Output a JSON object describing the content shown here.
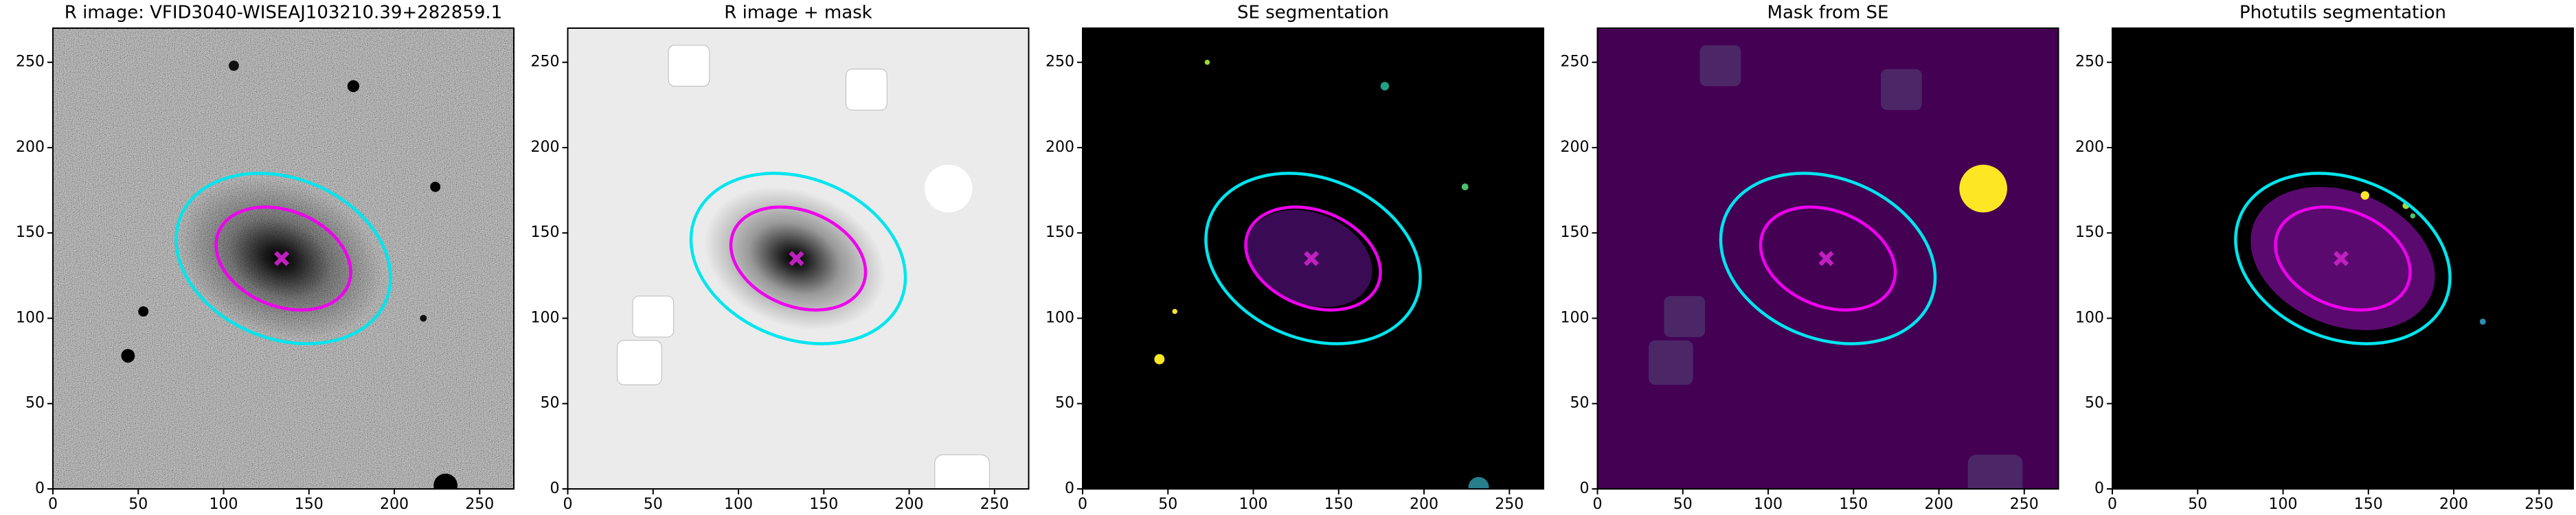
{
  "chart_data": [
    {
      "type": "image",
      "title": "R image: VFID3040-WISEAJ103210.39+282859.1",
      "xlim": [
        0,
        270
      ],
      "ylim": [
        0,
        270
      ],
      "xticks": [
        0,
        50,
        100,
        150,
        200,
        250
      ],
      "yticks": [
        0,
        50,
        100,
        150,
        200,
        250
      ],
      "background": "#5e5e5e",
      "noise": true,
      "sources": [
        {
          "shape": "glow",
          "x": 133,
          "y": 135,
          "size": 62,
          "color": "#000000"
        },
        {
          "shape": "circle",
          "x": 106,
          "y": 248,
          "size": 3,
          "color": "#111111"
        },
        {
          "shape": "circle",
          "x": 176,
          "y": 236,
          "size": 3.5,
          "color": "#000000"
        },
        {
          "shape": "circle",
          "x": 224,
          "y": 177,
          "size": 3,
          "color": "#000000"
        },
        {
          "shape": "circle",
          "x": 53,
          "y": 104,
          "size": 3,
          "color": "#000000"
        },
        {
          "shape": "circle",
          "x": 44,
          "y": 78,
          "size": 4,
          "color": "#000000"
        },
        {
          "shape": "circle",
          "x": 217,
          "y": 100,
          "size": 2,
          "color": "#111111"
        },
        {
          "shape": "circle",
          "x": 230,
          "y": 2,
          "size": 7,
          "color": "#000000"
        }
      ],
      "ellipses": [
        {
          "x": 135,
          "y": 135,
          "a": 65,
          "b": 47,
          "angle": -22,
          "color": "#00e5ee"
        },
        {
          "x": 135,
          "y": 135,
          "a": 41,
          "b": 28,
          "angle": -22,
          "color": "#ee00ee"
        }
      ],
      "marker": {
        "x": 134,
        "y": 135,
        "color": "#c020c0"
      }
    },
    {
      "type": "image",
      "title": "R image + mask",
      "xlim": [
        0,
        270
      ],
      "ylim": [
        0,
        270
      ],
      "xticks": [
        0,
        50,
        100,
        150,
        200,
        250
      ],
      "yticks": [
        0,
        50,
        100,
        150,
        200,
        250
      ],
      "background": "#ebebeb",
      "noise": false,
      "sources": [
        {
          "shape": "glow",
          "x": 133,
          "y": 135,
          "size": 55,
          "color": "#000000"
        },
        {
          "shape": "square",
          "x": 71,
          "y": 248,
          "size": 24,
          "color": "#ffffff"
        },
        {
          "shape": "square",
          "x": 175,
          "y": 234,
          "size": 24,
          "color": "#ffffff"
        },
        {
          "shape": "circle",
          "x": 223,
          "y": 176,
          "size": 14,
          "color": "#ffffff"
        },
        {
          "shape": "square",
          "x": 50,
          "y": 101,
          "size": 24,
          "color": "#ffffff"
        },
        {
          "shape": "square",
          "x": 42,
          "y": 74,
          "size": 26,
          "color": "#ffffff"
        },
        {
          "shape": "square",
          "x": 231,
          "y": 4,
          "size": 32,
          "color": "#ffffff"
        }
      ],
      "ellipses": [
        {
          "x": 135,
          "y": 135,
          "a": 65,
          "b": 47,
          "angle": -22,
          "color": "#00e5ee"
        },
        {
          "x": 135,
          "y": 135,
          "a": 41,
          "b": 28,
          "angle": -22,
          "color": "#ee00ee"
        }
      ],
      "marker": {
        "x": 134,
        "y": 135,
        "color": "#c020c0"
      }
    },
    {
      "type": "image",
      "title": "SE segmentation",
      "xlim": [
        0,
        270
      ],
      "ylim": [
        0,
        270
      ],
      "xticks": [
        0,
        50,
        100,
        150,
        200,
        250
      ],
      "yticks": [
        0,
        50,
        100,
        150,
        200,
        250
      ],
      "background": "#000000",
      "noise": false,
      "sources": [
        {
          "shape": "ellipse",
          "x": 133,
          "y": 135,
          "size": 38,
          "color": "#3b0a55"
        },
        {
          "shape": "circle",
          "x": 45,
          "y": 76,
          "size": 3,
          "color": "#fde725"
        },
        {
          "shape": "circle",
          "x": 54,
          "y": 104,
          "size": 1.5,
          "color": "#fde725"
        },
        {
          "shape": "circle",
          "x": 73,
          "y": 250,
          "size": 1.5,
          "color": "#a0da39"
        },
        {
          "shape": "circle",
          "x": 177,
          "y": 236,
          "size": 2.5,
          "color": "#1fa187"
        },
        {
          "shape": "circle",
          "x": 224,
          "y": 177,
          "size": 2,
          "color": "#4ac16d"
        },
        {
          "shape": "circle",
          "x": 232,
          "y": 1,
          "size": 6,
          "color": "#277f8e"
        }
      ],
      "ellipses": [
        {
          "x": 135,
          "y": 135,
          "a": 65,
          "b": 47,
          "angle": -22,
          "color": "#00e5ee"
        },
        {
          "x": 135,
          "y": 135,
          "a": 41,
          "b": 28,
          "angle": -22,
          "color": "#ee00ee"
        }
      ],
      "marker": {
        "x": 134,
        "y": 135,
        "color": "#c020c0"
      }
    },
    {
      "type": "image",
      "title": "Mask from SE",
      "xlim": [
        0,
        270
      ],
      "ylim": [
        0,
        270
      ],
      "xticks": [
        0,
        50,
        100,
        150,
        200,
        250
      ],
      "yticks": [
        0,
        50,
        100,
        150,
        200,
        250
      ],
      "background": "#440154",
      "noise": false,
      "sources": [
        {
          "shape": "square",
          "x": 72,
          "y": 248,
          "size": 24,
          "color": "#4c2768"
        },
        {
          "shape": "square",
          "x": 178,
          "y": 234,
          "size": 24,
          "color": "#4c2768"
        },
        {
          "shape": "circle",
          "x": 226,
          "y": 176,
          "size": 14,
          "color": "#fde725"
        },
        {
          "shape": "square",
          "x": 51,
          "y": 101,
          "size": 24,
          "color": "#4c2768"
        },
        {
          "shape": "square",
          "x": 43,
          "y": 74,
          "size": 26,
          "color": "#4c2768"
        },
        {
          "shape": "square",
          "x": 233,
          "y": 4,
          "size": 32,
          "color": "#4c2768"
        }
      ],
      "ellipses": [
        {
          "x": 135,
          "y": 135,
          "a": 65,
          "b": 47,
          "angle": -22,
          "color": "#00e5ee"
        },
        {
          "x": 135,
          "y": 135,
          "a": 41,
          "b": 28,
          "angle": -22,
          "color": "#ee00ee"
        }
      ],
      "marker": {
        "x": 134,
        "y": 135,
        "color": "#c020c0"
      }
    },
    {
      "type": "image",
      "title": "Photutils segmentation",
      "xlim": [
        0,
        270
      ],
      "ylim": [
        0,
        270
      ],
      "xticks": [
        0,
        50,
        100,
        150,
        200,
        250
      ],
      "yticks": [
        0,
        50,
        100,
        150,
        200,
        250
      ],
      "background": "#000000",
      "noise": false,
      "sources": [
        {
          "shape": "ellipse",
          "x": 135,
          "y": 135,
          "size": 56,
          "color": "#5a0a6e"
        },
        {
          "shape": "circle",
          "x": 148,
          "y": 172,
          "size": 2.5,
          "color": "#fde725"
        },
        {
          "shape": "circle",
          "x": 172,
          "y": 166,
          "size": 2,
          "color": "#a0da39"
        },
        {
          "shape": "circle",
          "x": 176,
          "y": 160,
          "size": 1.5,
          "color": "#4ac16d"
        },
        {
          "shape": "circle",
          "x": 217,
          "y": 98,
          "size": 1.8,
          "color": "#2c8fb0"
        }
      ],
      "ellipses": [
        {
          "x": 135,
          "y": 135,
          "a": 65,
          "b": 47,
          "angle": -22,
          "color": "#00e5ee"
        },
        {
          "x": 135,
          "y": 135,
          "a": 41,
          "b": 28,
          "angle": -22,
          "color": "#ee00ee"
        }
      ],
      "marker": {
        "x": 134,
        "y": 135,
        "color": "#c020c0"
      }
    }
  ]
}
